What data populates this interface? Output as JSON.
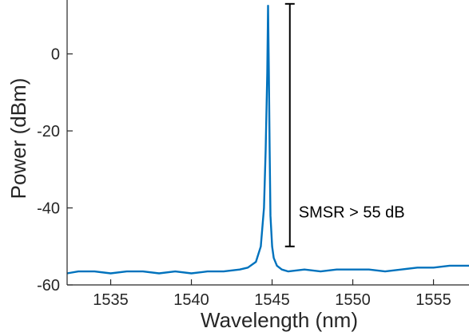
{
  "chart_data": {
    "type": "line",
    "title": "",
    "xlabel": "Wavelength (nm)",
    "ylabel": "Power (dBm)",
    "xlim": [
      1532.3,
      1557.2
    ],
    "ylim": [
      -60,
      14
    ],
    "xticks": [
      1535,
      1540,
      1545,
      1550,
      1555
    ],
    "yticks": [
      -60,
      -40,
      -20,
      0
    ],
    "grid": false,
    "legend": "none",
    "series": [
      {
        "color": "#0072BD",
        "x": [
          1532.3,
          1533,
          1534,
          1535,
          1536,
          1537,
          1538,
          1539,
          1540,
          1541,
          1542,
          1543,
          1543.5,
          1544,
          1544.3,
          1544.5,
          1544.6,
          1544.7,
          1544.75,
          1544.8,
          1544.85,
          1544.9,
          1545.0,
          1545.1,
          1545.3,
          1545.6,
          1546,
          1547,
          1548,
          1549,
          1550,
          1551,
          1552,
          1553,
          1554,
          1555,
          1556,
          1557.2
        ],
        "y": [
          -57,
          -56.5,
          -56.5,
          -57,
          -56.5,
          -56.5,
          -57,
          -56.5,
          -57,
          -56.5,
          -56.5,
          -56,
          -55.5,
          -54,
          -50,
          -40,
          -25,
          -5,
          12.5,
          -5,
          -25,
          -42,
          -50,
          -53,
          -55,
          -56,
          -56.5,
          -56,
          -56.5,
          -56,
          -56,
          -56,
          -56.5,
          -56,
          -55.5,
          -55.5,
          -55,
          -55
        ]
      }
    ],
    "annotations": [
      {
        "text": "SMSR > 55 dB",
        "bar_x": 1546.1,
        "bar_y_top": 13,
        "bar_y_bottom": -50
      }
    ]
  },
  "colors": {
    "series": "#0072BD",
    "axis": "#262626",
    "annotation": "#000000"
  }
}
